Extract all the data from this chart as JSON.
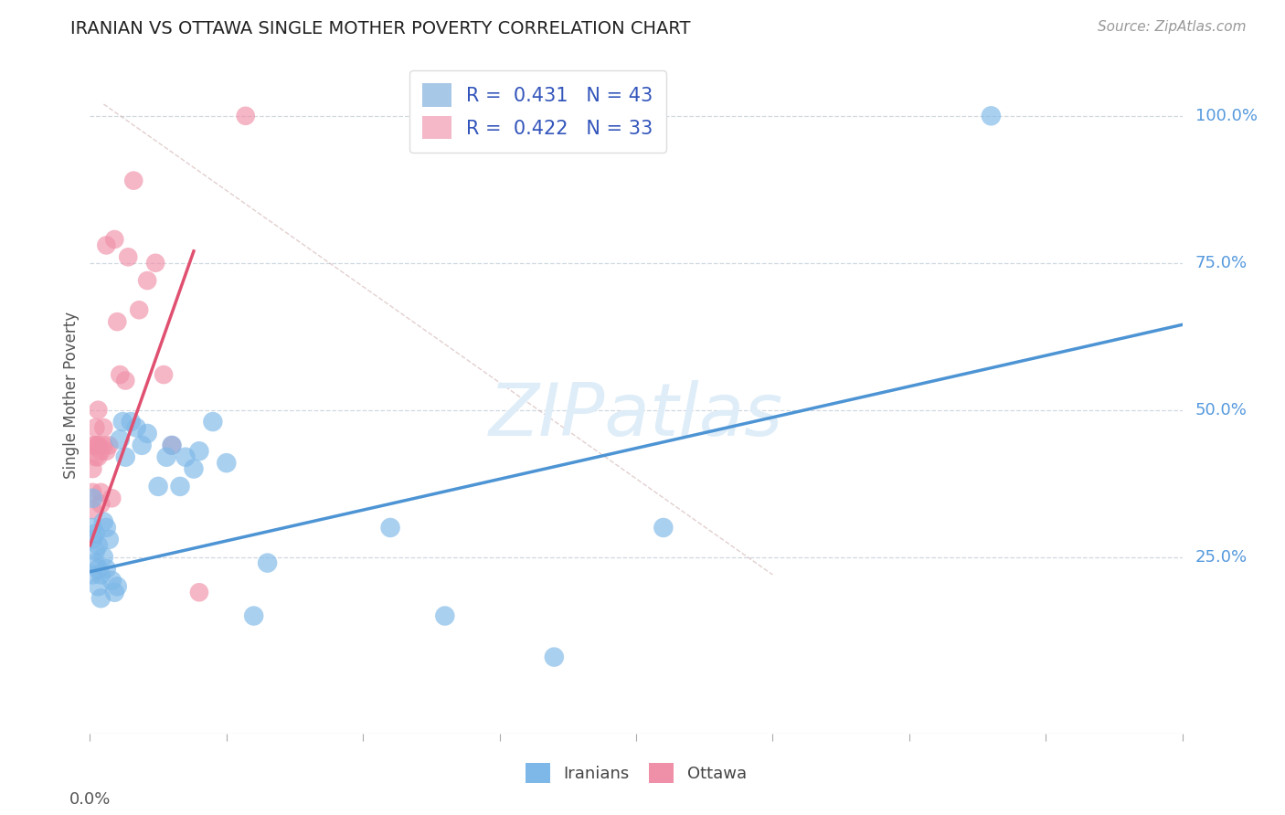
{
  "title": "IRANIAN VS OTTAWA SINGLE MOTHER POVERTY CORRELATION CHART",
  "source": "Source: ZipAtlas.com",
  "ylabel": "Single Mother Poverty",
  "x_range": [
    0.0,
    0.4
  ],
  "y_range": [
    -0.05,
    1.1
  ],
  "y_ticks": [
    0.25,
    0.5,
    0.75,
    1.0
  ],
  "y_tick_labels": [
    "25.0%",
    "50.0%",
    "75.0%",
    "100.0%"
  ],
  "legend_label1": "R =  0.431   N = 43",
  "legend_label2": "R =  0.422   N = 33",
  "legend_color1": "#a8c8e8",
  "legend_color2": "#f4b8c8",
  "iranians_color": "#7db8e8",
  "ottawa_color": "#f090a8",
  "line_blue": "#4d94d4",
  "line_pink": "#e05070",
  "watermark_color": "#deedf8",
  "iranians_x": [
    0.001,
    0.001,
    0.001,
    0.001,
    0.002,
    0.002,
    0.002,
    0.003,
    0.003,
    0.003,
    0.004,
    0.004,
    0.005,
    0.005,
    0.006,
    0.006,
    0.007,
    0.008,
    0.009,
    0.01,
    0.011,
    0.012,
    0.013,
    0.015,
    0.017,
    0.019,
    0.021,
    0.025,
    0.028,
    0.03,
    0.033,
    0.035,
    0.038,
    0.04,
    0.045,
    0.05,
    0.06,
    0.065,
    0.11,
    0.13,
    0.17,
    0.21,
    0.33
  ],
  "iranians_y": [
    0.3,
    0.28,
    0.22,
    0.35,
    0.26,
    0.29,
    0.24,
    0.23,
    0.2,
    0.27,
    0.18,
    0.22,
    0.31,
    0.25,
    0.23,
    0.3,
    0.28,
    0.21,
    0.19,
    0.2,
    0.45,
    0.48,
    0.42,
    0.48,
    0.47,
    0.44,
    0.46,
    0.37,
    0.42,
    0.44,
    0.37,
    0.42,
    0.4,
    0.43,
    0.48,
    0.41,
    0.15,
    0.24,
    0.3,
    0.15,
    0.08,
    0.3,
    1.0
  ],
  "ottawa_x": [
    0.001,
    0.001,
    0.001,
    0.001,
    0.002,
    0.002,
    0.002,
    0.003,
    0.003,
    0.003,
    0.003,
    0.004,
    0.004,
    0.004,
    0.005,
    0.005,
    0.006,
    0.006,
    0.007,
    0.008,
    0.009,
    0.01,
    0.011,
    0.013,
    0.014,
    0.016,
    0.018,
    0.021,
    0.024,
    0.027,
    0.03,
    0.04,
    0.057
  ],
  "ottawa_y": [
    0.36,
    0.4,
    0.44,
    0.33,
    0.44,
    0.47,
    0.42,
    0.44,
    0.42,
    0.5,
    0.44,
    0.43,
    0.36,
    0.34,
    0.47,
    0.44,
    0.43,
    0.78,
    0.44,
    0.35,
    0.79,
    0.65,
    0.56,
    0.55,
    0.76,
    0.89,
    0.67,
    0.72,
    0.75,
    0.56,
    0.44,
    0.19,
    1.0
  ],
  "blue_line_x": [
    0.0,
    0.4
  ],
  "blue_line_y": [
    0.225,
    0.645
  ],
  "pink_line_x": [
    0.0,
    0.038
  ],
  "pink_line_y": [
    0.27,
    0.77
  ],
  "ref_line_x": [
    0.005,
    0.25
  ],
  "ref_line_y": [
    1.02,
    0.22
  ]
}
